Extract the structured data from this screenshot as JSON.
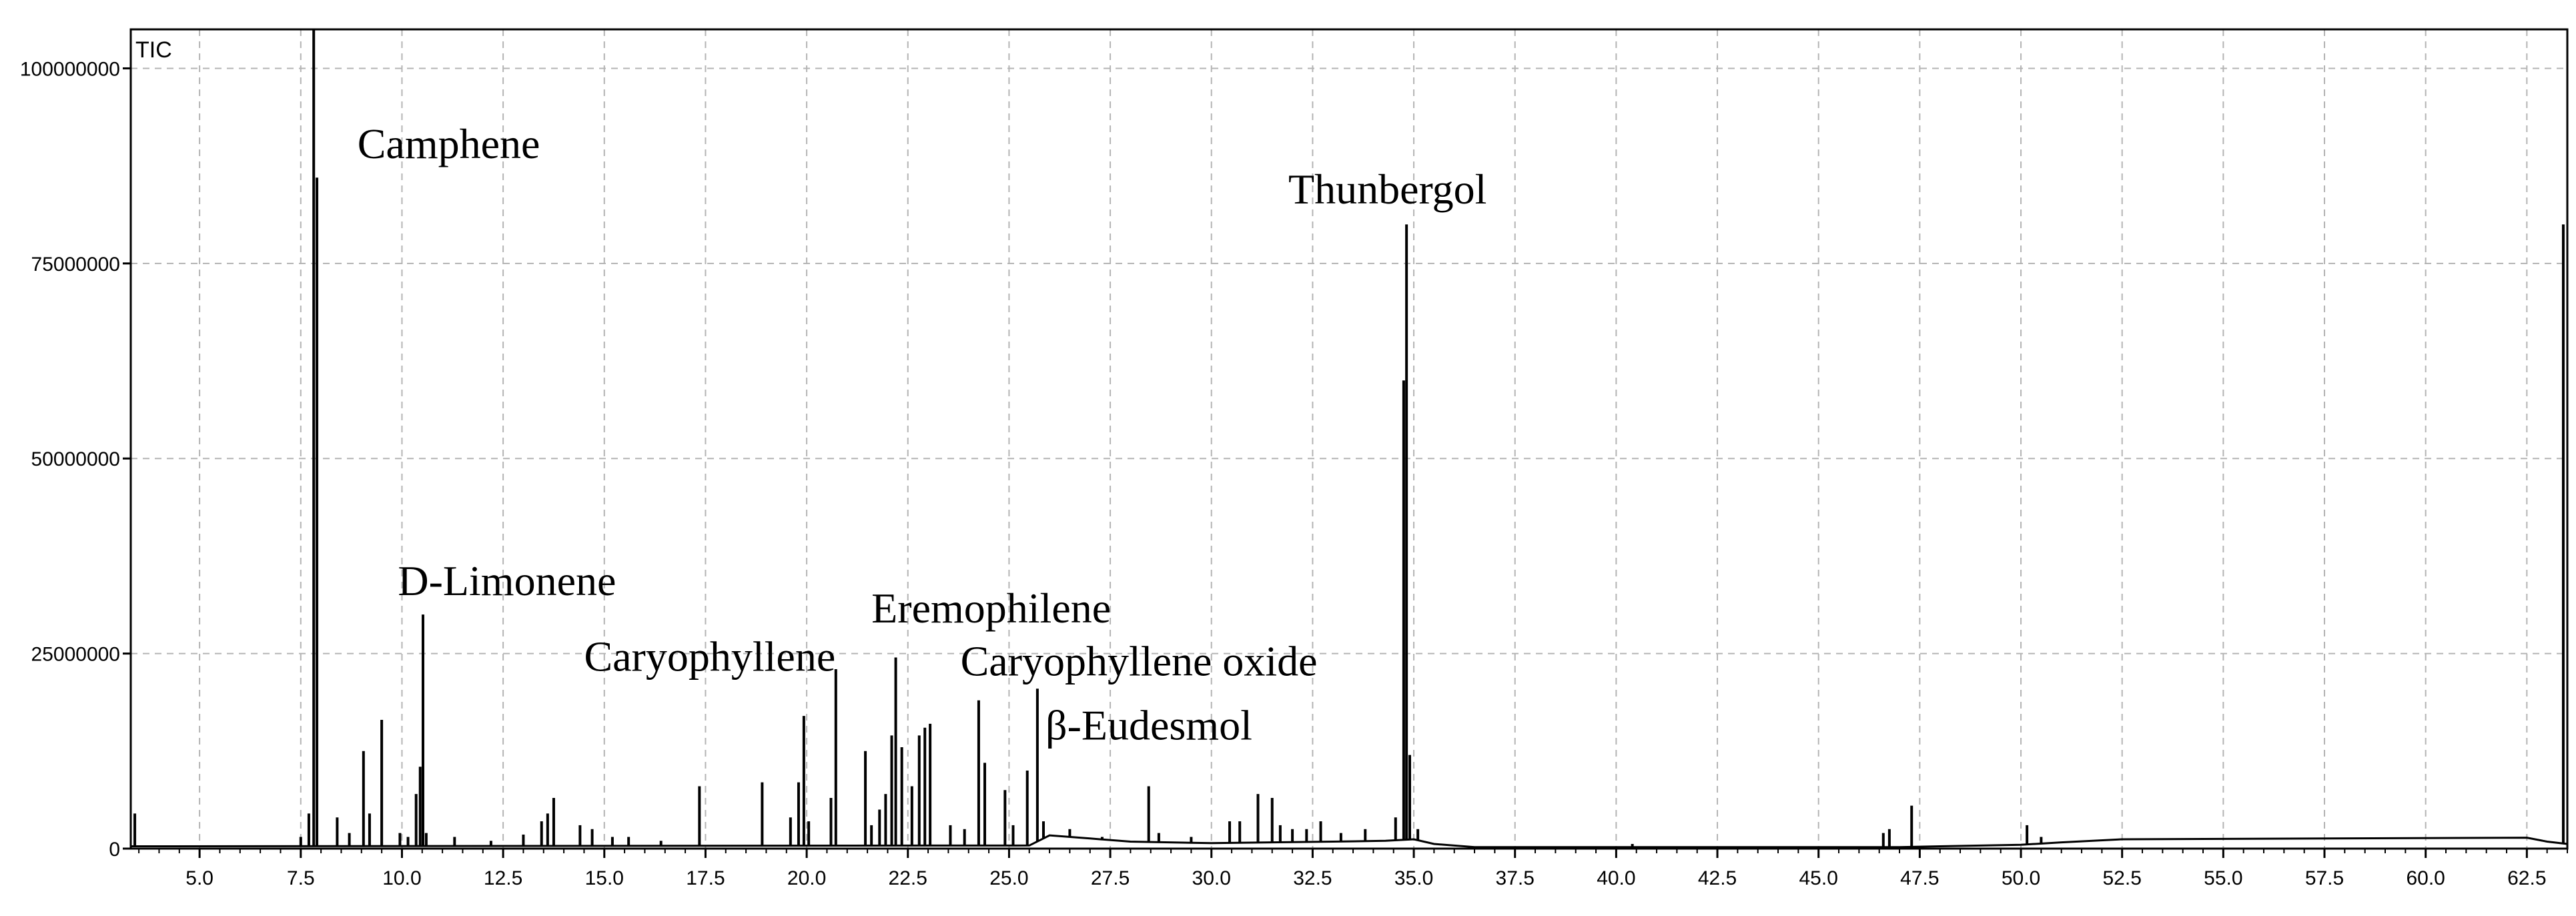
{
  "chart_data": {
    "type": "line",
    "corner_label": "TIC",
    "title": "",
    "xlabel": "",
    "ylabel": "",
    "xlim": [
      3.3,
      63.5
    ],
    "ylim": [
      0,
      105000000
    ],
    "grid": true,
    "x_ticks": [
      5.0,
      7.5,
      10.0,
      12.5,
      15.0,
      17.5,
      20.0,
      22.5,
      25.0,
      27.5,
      30.0,
      32.5,
      35.0,
      37.5,
      40.0,
      42.5,
      45.0,
      47.5,
      50.0,
      52.5,
      55.0,
      57.5,
      60.0,
      62.5
    ],
    "x_tick_labels": [
      "5.0",
      "7.5",
      "10.0",
      "12.5",
      "15.0",
      "17.5",
      "20.0",
      "22.5",
      "25.0",
      "27.5",
      "30.0",
      "32.5",
      "35.0",
      "37.5",
      "40.0",
      "42.5",
      "45.0",
      "47.5",
      "50.0",
      "52.5",
      "55.0",
      "57.5",
      "60.0",
      "62.5"
    ],
    "y_ticks": [
      0,
      25000000,
      50000000,
      75000000,
      100000000
    ],
    "y_tick_labels": [
      "0",
      "25000000",
      "50000000",
      "75000000",
      "100000000"
    ],
    "baseline": [
      [
        3.3,
        300000
      ],
      [
        25.5,
        400000
      ],
      [
        26.0,
        1700000
      ],
      [
        27.0,
        1300000
      ],
      [
        28.0,
        900000
      ],
      [
        30.0,
        700000
      ],
      [
        33.0,
        900000
      ],
      [
        34.3,
        1000000
      ],
      [
        35.0,
        1200000
      ],
      [
        35.5,
        600000
      ],
      [
        36.5,
        200000
      ],
      [
        47.0,
        200000
      ],
      [
        48.0,
        300000
      ],
      [
        50.0,
        500000
      ],
      [
        51.0,
        800000
      ],
      [
        52.5,
        1200000
      ],
      [
        62.5,
        1400000
      ],
      [
        63.0,
        900000
      ],
      [
        63.5,
        600000
      ]
    ],
    "peaks": [
      {
        "x": 3.4,
        "y": 4500000
      },
      {
        "x": 7.5,
        "y": 1500000
      },
      {
        "x": 7.7,
        "y": 4500000
      },
      {
        "x": 7.82,
        "y": 120000000
      },
      {
        "x": 7.9,
        "y": 86000000
      },
      {
        "x": 8.4,
        "y": 4000000
      },
      {
        "x": 8.7,
        "y": 2000000
      },
      {
        "x": 9.05,
        "y": 12500000
      },
      {
        "x": 9.2,
        "y": 4500000
      },
      {
        "x": 9.5,
        "y": 16500000
      },
      {
        "x": 9.95,
        "y": 2000000
      },
      {
        "x": 10.15,
        "y": 1500000
      },
      {
        "x": 10.35,
        "y": 7000000
      },
      {
        "x": 10.45,
        "y": 10500000
      },
      {
        "x": 10.52,
        "y": 30000000
      },
      {
        "x": 10.6,
        "y": 2000000
      },
      {
        "x": 11.3,
        "y": 1500000
      },
      {
        "x": 12.2,
        "y": 1000000
      },
      {
        "x": 13.0,
        "y": 1800000
      },
      {
        "x": 13.45,
        "y": 3500000
      },
      {
        "x": 13.6,
        "y": 4500000
      },
      {
        "x": 13.75,
        "y": 6500000
      },
      {
        "x": 14.4,
        "y": 3000000
      },
      {
        "x": 14.7,
        "y": 2500000
      },
      {
        "x": 15.2,
        "y": 1500000
      },
      {
        "x": 15.6,
        "y": 1500000
      },
      {
        "x": 16.4,
        "y": 1000000
      },
      {
        "x": 17.35,
        "y": 8000000
      },
      {
        "x": 18.9,
        "y": 8500000
      },
      {
        "x": 19.6,
        "y": 4000000
      },
      {
        "x": 19.8,
        "y": 8500000
      },
      {
        "x": 19.93,
        "y": 17000000
      },
      {
        "x": 20.05,
        "y": 3500000
      },
      {
        "x": 20.6,
        "y": 6500000
      },
      {
        "x": 20.72,
        "y": 23000000
      },
      {
        "x": 21.45,
        "y": 12500000
      },
      {
        "x": 21.6,
        "y": 3000000
      },
      {
        "x": 21.8,
        "y": 5000000
      },
      {
        "x": 21.95,
        "y": 7000000
      },
      {
        "x": 22.1,
        "y": 14500000
      },
      {
        "x": 22.2,
        "y": 24500000
      },
      {
        "x": 22.35,
        "y": 13000000
      },
      {
        "x": 22.6,
        "y": 8000000
      },
      {
        "x": 22.78,
        "y": 14500000
      },
      {
        "x": 22.92,
        "y": 15500000
      },
      {
        "x": 23.05,
        "y": 16000000
      },
      {
        "x": 23.55,
        "y": 3000000
      },
      {
        "x": 23.9,
        "y": 2500000
      },
      {
        "x": 24.25,
        "y": 19000000
      },
      {
        "x": 24.4,
        "y": 11000000
      },
      {
        "x": 24.9,
        "y": 7500000
      },
      {
        "x": 25.1,
        "y": 3000000
      },
      {
        "x": 25.45,
        "y": 10000000
      },
      {
        "x": 25.7,
        "y": 20500000
      },
      {
        "x": 25.85,
        "y": 3500000
      },
      {
        "x": 26.5,
        "y": 2500000
      },
      {
        "x": 27.3,
        "y": 1500000
      },
      {
        "x": 28.45,
        "y": 8000000
      },
      {
        "x": 28.7,
        "y": 2000000
      },
      {
        "x": 29.5,
        "y": 1500000
      },
      {
        "x": 30.45,
        "y": 3500000
      },
      {
        "x": 30.7,
        "y": 3500000
      },
      {
        "x": 31.15,
        "y": 7000000
      },
      {
        "x": 31.5,
        "y": 6500000
      },
      {
        "x": 31.7,
        "y": 3000000
      },
      {
        "x": 32.0,
        "y": 2500000
      },
      {
        "x": 32.35,
        "y": 2500000
      },
      {
        "x": 32.7,
        "y": 3500000
      },
      {
        "x": 33.2,
        "y": 2000000
      },
      {
        "x": 33.8,
        "y": 2500000
      },
      {
        "x": 34.55,
        "y": 4000000
      },
      {
        "x": 34.75,
        "y": 60000000
      },
      {
        "x": 34.82,
        "y": 80000000
      },
      {
        "x": 34.9,
        "y": 12000000
      },
      {
        "x": 35.1,
        "y": 2500000
      },
      {
        "x": 40.4,
        "y": 600000
      },
      {
        "x": 46.6,
        "y": 2000000
      },
      {
        "x": 46.75,
        "y": 2500000
      },
      {
        "x": 47.3,
        "y": 5500000
      },
      {
        "x": 50.15,
        "y": 3000000
      },
      {
        "x": 50.5,
        "y": 1500000
      },
      {
        "x": 63.4,
        "y": 80000000
      }
    ],
    "annotations": [
      {
        "text": "Camphene",
        "x": 8.9,
        "y": 88500000
      },
      {
        "text": "D-Limonene",
        "x": 9.9,
        "y": 32500000
      },
      {
        "text": "Caryophyllene",
        "x": 14.5,
        "y": 22800000
      },
      {
        "text": "Eremophilene",
        "x": 21.6,
        "y": 29000000
      },
      {
        "text": "Caryophyllene oxide",
        "x": 23.8,
        "y": 22200000
      },
      {
        "text": "β-Eudesmol",
        "x": 25.9,
        "y": 14000000
      },
      {
        "text": "Thunbergol",
        "x": 31.9,
        "y": 82700000
      }
    ]
  }
}
